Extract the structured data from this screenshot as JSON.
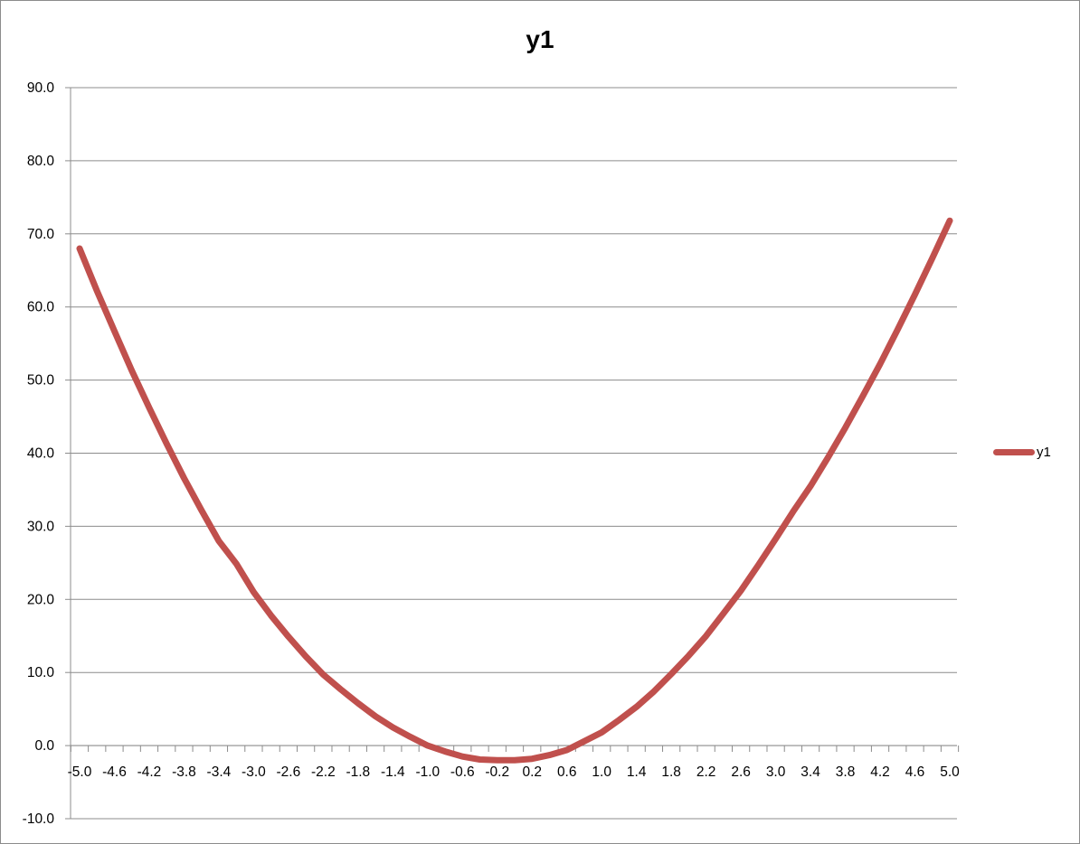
{
  "chart_data": {
    "type": "line",
    "title": "y1",
    "xlabel": "",
    "ylabel": "",
    "ylim": [
      -10,
      90
    ],
    "y_ticks": [
      "-10.0",
      "0.0",
      "10.0",
      "20.0",
      "30.0",
      "40.0",
      "50.0",
      "60.0",
      "70.0",
      "80.0",
      "90.0"
    ],
    "x_tick_labels": [
      "-5.0",
      "-4.6",
      "-4.2",
      "-3.8",
      "-3.4",
      "-3.0",
      "-2.6",
      "-2.2",
      "-1.8",
      "-1.4",
      "-1.0",
      "-0.6",
      "-0.2",
      "0.2",
      "0.6",
      "1.0",
      "1.4",
      "1.8",
      "2.2",
      "2.6",
      "3.0",
      "3.4",
      "3.8",
      "4.2",
      "4.6",
      "5.0"
    ],
    "grid": true,
    "legend_position": "right",
    "x": [
      -5.0,
      -4.8,
      -4.6,
      -4.4,
      -4.2,
      -4.0,
      -3.8,
      -3.6,
      -3.4,
      -3.2,
      -3.0,
      -2.8,
      -2.6,
      -2.4,
      -2.2,
      -2.0,
      -1.8,
      -1.6,
      -1.4,
      -1.2,
      -1.0,
      -0.8,
      -0.6,
      -0.4,
      -0.2,
      0.0,
      0.2,
      0.4,
      0.6,
      0.8,
      1.0,
      1.2,
      1.4,
      1.6,
      1.8,
      2.0,
      2.2,
      2.4,
      2.6,
      2.8,
      3.0,
      3.2,
      3.4,
      3.6,
      3.8,
      4.0,
      4.2,
      4.4,
      4.6,
      4.8,
      5.0
    ],
    "series": [
      {
        "name": "y1",
        "color": "#c0504d",
        "values": [
          68.0,
          62.2,
          56.7,
          51.3,
          46.2,
          41.3,
          36.6,
          32.2,
          28.0,
          24.9,
          21.0,
          17.8,
          14.9,
          12.2,
          9.7,
          7.7,
          5.8,
          4.0,
          2.5,
          1.2,
          0.0,
          -0.8,
          -1.5,
          -1.9,
          -2.0,
          -2.0,
          -1.8,
          -1.3,
          -0.6,
          0.6,
          1.8,
          3.5,
          5.3,
          7.4,
          9.8,
          12.3,
          15.0,
          18.1,
          21.2,
          24.7,
          28.3,
          32.0,
          35.5,
          39.4,
          43.5,
          47.8,
          52.2,
          56.9,
          61.7,
          66.7,
          71.8
        ]
      }
    ]
  }
}
